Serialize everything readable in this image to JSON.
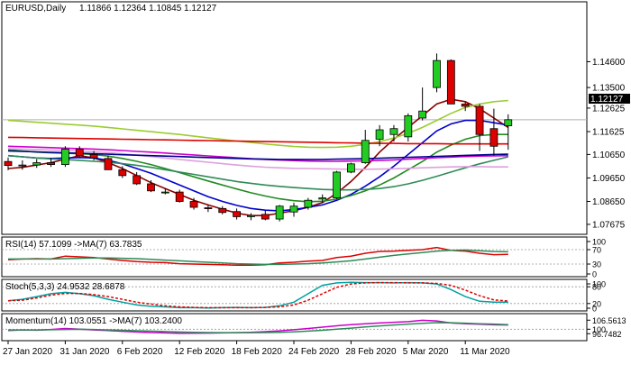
{
  "chart_data": [
    {
      "type": "candlestick",
      "symbol_label": "EURUSD,Daily",
      "ohlc_label": "1.11866 1.12364 1.10845 1.12127",
      "last_price_label": "1.12127",
      "y_range": [
        1.0725,
        1.1715
      ],
      "y_ticks": [
        "1.14600",
        "1.13500",
        "1.12625",
        "1.11625",
        "1.10650",
        "1.09650",
        "1.08650",
        "1.07675"
      ],
      "x_tick_labels": [
        {
          "label": "27 Jan 2020",
          "index": 0
        },
        {
          "label": "31 Jan 2020",
          "index": 4
        },
        {
          "label": "6 Feb 2020",
          "index": 8
        },
        {
          "label": "12 Feb 2020",
          "index": 12
        },
        {
          "label": "18 Feb 2020",
          "index": 16
        },
        {
          "label": "24 Feb 2020",
          "index": 20
        },
        {
          "label": "28 Feb 2020",
          "index": 24
        },
        {
          "label": "5 Mar 2020",
          "index": 28
        },
        {
          "label": "11 Mar 2020",
          "index": 32
        }
      ],
      "candles": [
        {
          "o": 1.1035,
          "h": 1.1052,
          "l": 1.0998,
          "c": 1.1018
        },
        {
          "o": 1.1018,
          "h": 1.104,
          "l": 1.1,
          "c": 1.102
        },
        {
          "o": 1.102,
          "h": 1.1045,
          "l": 1.1008,
          "c": 1.103
        },
        {
          "o": 1.103,
          "h": 1.105,
          "l": 1.1012,
          "c": 1.1022
        },
        {
          "o": 1.1022,
          "h": 1.11,
          "l": 1.1012,
          "c": 1.1088
        },
        {
          "o": 1.1088,
          "h": 1.11,
          "l": 1.1055,
          "c": 1.106
        },
        {
          "o": 1.1065,
          "h": 1.108,
          "l": 1.104,
          "c": 1.105
        },
        {
          "o": 1.1048,
          "h": 1.106,
          "l": 1.1,
          "c": 1.1
        },
        {
          "o": 1.1,
          "h": 1.1015,
          "l": 1.0965,
          "c": 1.0975
        },
        {
          "o": 1.0975,
          "h": 1.099,
          "l": 1.0935,
          "c": 1.094
        },
        {
          "o": 1.094,
          "h": 1.0955,
          "l": 1.0905,
          "c": 1.091
        },
        {
          "o": 1.0905,
          "h": 1.092,
          "l": 1.0895,
          "c": 1.0905
        },
        {
          "o": 1.0905,
          "h": 1.0915,
          "l": 1.086,
          "c": 1.0865
        },
        {
          "o": 1.0865,
          "h": 1.088,
          "l": 1.083,
          "c": 1.084
        },
        {
          "o": 1.0838,
          "h": 1.085,
          "l": 1.082,
          "c": 1.0835
        },
        {
          "o": 1.0835,
          "h": 1.0845,
          "l": 1.081,
          "c": 1.0818
        },
        {
          "o": 1.0822,
          "h": 1.0835,
          "l": 1.0788,
          "c": 1.08
        },
        {
          "o": 1.08,
          "h": 1.0815,
          "l": 1.0785,
          "c": 1.0805
        },
        {
          "o": 1.081,
          "h": 1.0825,
          "l": 1.0785,
          "c": 1.079
        },
        {
          "o": 1.079,
          "h": 1.085,
          "l": 1.078,
          "c": 1.0845
        },
        {
          "o": 1.082,
          "h": 1.086,
          "l": 1.08,
          "c": 1.0845
        },
        {
          "o": 1.084,
          "h": 1.088,
          "l": 1.083,
          "c": 1.087
        },
        {
          "o": 1.0875,
          "h": 1.0895,
          "l": 1.086,
          "c": 1.088
        },
        {
          "o": 1.088,
          "h": 1.0995,
          "l": 1.0875,
          "c": 1.099
        },
        {
          "o": 1.099,
          "h": 1.103,
          "l": 1.0985,
          "c": 1.1025
        },
        {
          "o": 1.103,
          "h": 1.117,
          "l": 1.1025,
          "c": 1.1125
        },
        {
          "o": 1.113,
          "h": 1.119,
          "l": 1.11,
          "c": 1.117
        },
        {
          "o": 1.115,
          "h": 1.119,
          "l": 1.112,
          "c": 1.1175
        },
        {
          "o": 1.114,
          "h": 1.124,
          "l": 1.112,
          "c": 1.123
        },
        {
          "o": 1.122,
          "h": 1.135,
          "l": 1.121,
          "c": 1.125
        },
        {
          "o": 1.135,
          "h": 1.1495,
          "l": 1.133,
          "c": 1.1465
        },
        {
          "o": 1.1465,
          "h": 1.147,
          "l": 1.128,
          "c": 1.128
        },
        {
          "o": 1.128,
          "h": 1.129,
          "l": 1.125,
          "c": 1.127
        },
        {
          "o": 1.127,
          "h": 1.128,
          "l": 1.108,
          "c": 1.115
        },
        {
          "o": 1.1175,
          "h": 1.126,
          "l": 1.106,
          "c": 1.11
        },
        {
          "o": 1.1187,
          "h": 1.1236,
          "l": 1.1085,
          "c": 1.1213
        }
      ],
      "moving_averages": [
        {
          "color": "#8b0000",
          "values": [
            1.1005,
            1.101,
            1.102,
            1.103,
            1.1045,
            1.106,
            1.105,
            1.103,
            1.1005,
            1.0975,
            1.0945,
            1.092,
            1.0895,
            1.087,
            1.085,
            1.0832,
            1.0815,
            1.0805,
            1.0805,
            1.0815,
            1.0825,
            1.084,
            1.086,
            1.09,
            1.095,
            1.101,
            1.1075,
            1.113,
            1.118,
            1.123,
            1.128,
            1.13,
            1.129,
            1.126,
            1.122,
            1.118
          ]
        },
        {
          "color": "#0000cd",
          "values": [
            1.106,
            1.1055,
            1.105,
            1.1048,
            1.105,
            1.1052,
            1.105,
            1.104,
            1.1025,
            1.1005,
            1.0985,
            1.096,
            1.0935,
            1.091,
            1.0885,
            1.0865,
            1.0848,
            1.0835,
            1.0828,
            1.0825,
            1.083,
            1.084,
            1.085,
            1.087,
            1.0895,
            1.093,
            1.097,
            1.1015,
            1.1065,
            1.1115,
            1.1165,
            1.1195,
            1.121,
            1.121,
            1.12,
            1.119
          ]
        },
        {
          "color": "#228b22",
          "values": [
            1.1085,
            1.108,
            1.1075,
            1.1072,
            1.107,
            1.1068,
            1.1065,
            1.1058,
            1.1048,
            1.1036,
            1.1022,
            1.1005,
            1.0988,
            1.097,
            1.0952,
            1.0935,
            1.0918,
            1.0902,
            1.0888,
            1.0876,
            1.0868,
            1.0864,
            1.0866,
            1.0875,
            1.089,
            1.091,
            1.0935,
            1.0965,
            1.1,
            1.1035,
            1.1075,
            1.1105,
            1.113,
            1.1145,
            1.115,
            1.115
          ]
        },
        {
          "color": "#9acd32",
          "values": [
            1.121,
            1.1206,
            1.1202,
            1.1198,
            1.1194,
            1.119,
            1.1186,
            1.118,
            1.1174,
            1.1168,
            1.1162,
            1.1156,
            1.115,
            1.1143,
            1.1136,
            1.1129,
            1.1122,
            1.1116,
            1.111,
            1.1104,
            1.1099,
            1.1096,
            1.1095,
            1.1096,
            1.11,
            1.1108,
            1.112,
            1.1135,
            1.1155,
            1.118,
            1.121,
            1.124,
            1.1265,
            1.128,
            1.129,
            1.1295
          ]
        },
        {
          "color": "#2e8b57",
          "values": [
            1.106,
            1.1055,
            1.105,
            1.1046,
            1.1043,
            1.104,
            1.1036,
            1.1032,
            1.1026,
            1.1019,
            1.101,
            1.1,
            1.099,
            1.098,
            1.097,
            1.096,
            1.095,
            1.0942,
            1.0935,
            1.0929,
            1.0924,
            1.092,
            1.0916,
            1.0914,
            1.0914,
            1.0916,
            1.092,
            1.0928,
            1.094,
            1.0955,
            1.0972,
            1.099,
            1.1008,
            1.1025,
            1.104,
            1.1055
          ]
        },
        {
          "color": "#dda0dd",
          "values": [
            1.109,
            1.1088,
            1.1086,
            1.1084,
            1.1082,
            1.108,
            1.1077,
            1.1073,
            1.1068,
            1.1062,
            1.1056,
            1.105,
            1.1044,
            1.1038,
            1.1032,
            1.1026,
            1.102,
            1.1015,
            1.1011,
            1.1008,
            1.1006,
            1.1005,
            1.1004,
            1.1003,
            1.1002,
            1.1002,
            1.1003,
            1.1004,
            1.1006,
            1.1008,
            1.101,
            1.1012,
            1.1013,
            1.1013,
            1.1012,
            1.1012
          ]
        },
        {
          "color": "#cc00cc",
          "values": [
            1.11,
            1.1098,
            1.1096,
            1.1094,
            1.1092,
            1.109,
            1.1088,
            1.1085,
            1.1082,
            1.1078,
            1.1075,
            1.1071,
            1.1067,
            1.1063,
            1.1059,
            1.1055,
            1.1051,
            1.1047,
            1.1044,
            1.1041,
            1.1039,
            1.1037,
            1.1036,
            1.1036,
            1.1037,
            1.1038,
            1.104,
            1.1042,
            1.1045,
            1.1048,
            1.1051,
            1.1054,
            1.1056,
            1.1058,
            1.1059,
            1.106
          ]
        },
        {
          "color": "#00008b",
          "values": [
            1.108,
            1.1078,
            1.1076,
            1.1074,
            1.1072,
            1.107,
            1.1068,
            1.1066,
            1.1064,
            1.1062,
            1.106,
            1.1058,
            1.1056,
            1.1054,
            1.1052,
            1.105,
            1.1048,
            1.1046,
            1.1045,
            1.1044,
            1.1044,
            1.1044,
            1.1044,
            1.1045,
            1.1046,
            1.1047,
            1.1049,
            1.1051,
            1.1053,
            1.1055,
            1.1057,
            1.1059,
            1.1061,
            1.1063,
            1.1065,
            1.1066
          ]
        },
        {
          "color": "#dd0000",
          "values": [
            1.1138,
            1.1137,
            1.1136,
            1.1135,
            1.1134,
            1.1133,
            1.1132,
            1.1131,
            1.113,
            1.1129,
            1.1128,
            1.1127,
            1.1126,
            1.1125,
            1.1124,
            1.1123,
            1.1122,
            1.1121,
            1.112,
            1.1119,
            1.1118,
            1.1117,
            1.1116,
            1.1115,
            1.1114,
            1.1113,
            1.1112,
            1.1112,
            1.1111,
            1.1111,
            1.1111,
            1.111,
            1.111,
            1.111,
            1.111,
            1.111
          ]
        }
      ],
      "horizontal_line": 1.1213
    },
    {
      "type": "line",
      "label": "RSI(14) 57.1099  ->MA(7) 63.7835",
      "y_range": [
        0,
        100
      ],
      "y_ticks": [
        "100",
        "70",
        "30",
        "0"
      ],
      "levels": [
        70,
        30
      ],
      "series": [
        {
          "color": "#dd0000",
          "values": [
            42,
            44,
            45,
            44,
            52,
            50,
            48,
            44,
            40,
            37,
            35,
            34,
            31,
            30,
            29,
            28,
            27,
            27,
            28,
            33,
            35,
            38,
            40,
            48,
            52,
            60,
            65,
            66,
            68,
            70,
            76,
            68,
            66,
            60,
            56,
            57
          ]
        },
        {
          "color": "#2e8b57",
          "values": [
            44,
            44,
            44,
            44,
            45,
            46,
            47,
            47,
            46,
            45,
            43,
            41,
            39,
            37,
            35,
            33,
            31,
            30,
            29,
            29,
            30,
            31,
            33,
            36,
            39,
            44,
            49,
            54,
            58,
            62,
            66,
            68,
            69,
            67,
            65,
            64
          ]
        }
      ]
    },
    {
      "type": "line",
      "label": "Stoch(5,3,3) 24.9532 28.6878",
      "y_range": [
        0,
        100
      ],
      "y_ticks": [
        "100",
        "80",
        "20",
        "0"
      ],
      "levels": [
        80,
        20
      ],
      "series": [
        {
          "color": "#00a0a0",
          "values": [
            30,
            35,
            45,
            55,
            60,
            55,
            48,
            35,
            25,
            15,
            10,
            8,
            5,
            5,
            4,
            5,
            6,
            5,
            6,
            12,
            25,
            55,
            85,
            94,
            96,
            95,
            95,
            94,
            95,
            94,
            90,
            70,
            45,
            28,
            25,
            25
          ]
        },
        {
          "color": "#dd0000",
          "dash": true,
          "values": [
            30,
            32,
            40,
            50,
            56,
            56,
            52,
            45,
            35,
            25,
            18,
            12,
            8,
            6,
            5,
            5,
            5,
            5,
            6,
            8,
            15,
            32,
            55,
            78,
            90,
            94,
            95,
            95,
            94,
            94,
            92,
            85,
            68,
            48,
            33,
            29
          ]
        }
      ]
    },
    {
      "type": "line",
      "label": "Momentum(14) 103.0551  ->MA(7) 103.2400",
      "y_range": [
        93,
        110
      ],
      "y_ticks": [
        "106.5613",
        "100",
        "96.7482"
      ],
      "levels": [
        100
      ],
      "series": [
        {
          "color": "#cc00cc",
          "values": [
            99,
            99.5,
            99.3,
            99.8,
            100.5,
            100,
            99.5,
            99,
            98.5,
            98,
            97.6,
            97.3,
            97,
            97.1,
            97.2,
            97.3,
            97.5,
            97.8,
            98.2,
            98.8,
            99.6,
            100.5,
            101.5,
            102.5,
            103.3,
            104,
            104.5,
            105,
            105.5,
            106.5,
            106,
            104.5,
            104,
            103.6,
            103.2,
            103.05
          ]
        },
        {
          "color": "#2e8b57",
          "values": [
            99.5,
            99.5,
            99.5,
            99.6,
            99.8,
            99.9,
            99.8,
            99.5,
            99.2,
            98.9,
            98.6,
            98.3,
            98,
            97.8,
            97.6,
            97.5,
            97.5,
            97.5,
            97.6,
            97.8,
            98.1,
            98.6,
            99.2,
            100,
            100.8,
            101.6,
            102.4,
            103.1,
            103.7,
            104.3,
            104.8,
            104.7,
            104.4,
            104,
            103.7,
            103.24
          ]
        }
      ]
    }
  ]
}
